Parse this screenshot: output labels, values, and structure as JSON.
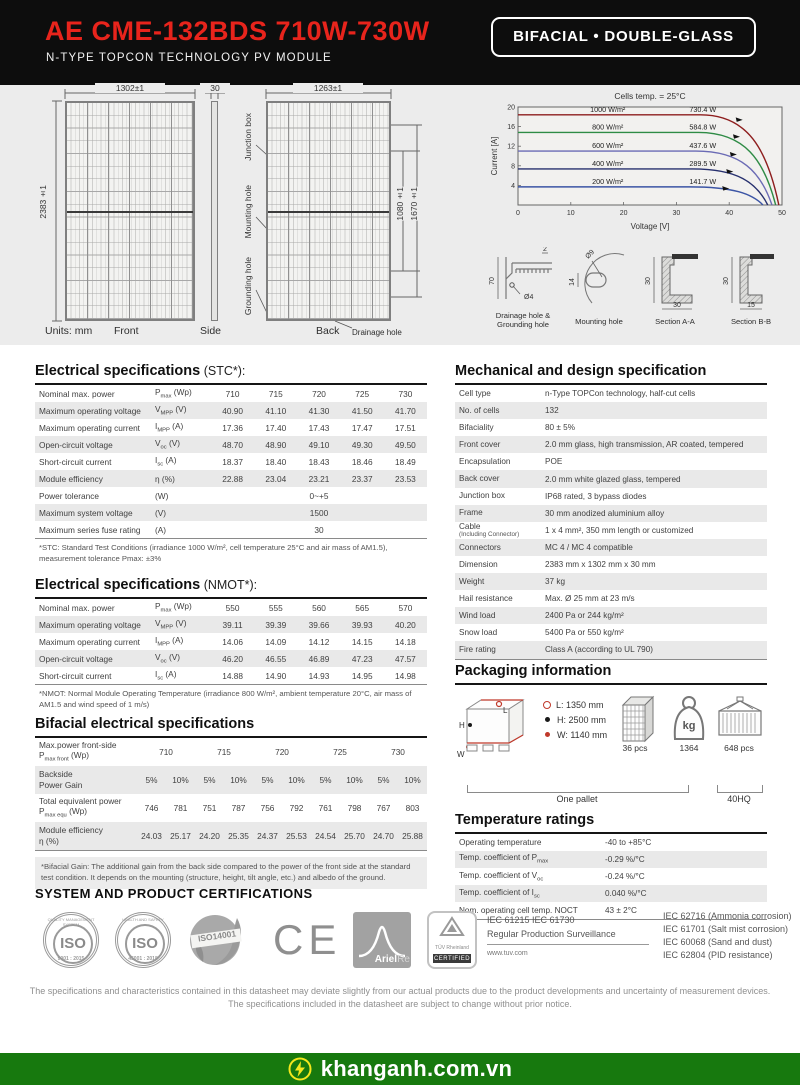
{
  "header": {
    "title": "AE CME-132BDS 710W-730W",
    "subtitle": "N-TYPE TOPCON TECHNOLOGY PV MODULE",
    "badge": "BIFACIAL  •  DOUBLE-GLASS"
  },
  "diagram": {
    "units_label": "Units: mm",
    "front_label": "Front",
    "side_label": "Side",
    "back_label": "Back",
    "front_width_dim": "1302±1",
    "front_height_dim": "2383±1",
    "side_dim": "30",
    "back_width_dim": "1263±1",
    "back_dim_inner": "1080±1",
    "back_dim_outer": "1670±1",
    "junction_box_label": "Junction box",
    "mounting_hole_label": "Mounting hole",
    "grounding_hole_label": "Grounding hole",
    "drainage_hole_label": "Drainage hole",
    "details": [
      {
        "caption": "Drainage hole & Grounding hole",
        "dims": [
          "70",
          "2",
          "Ø4"
        ]
      },
      {
        "caption": "Mounting hole",
        "dims": [
          "Ø9",
          "14"
        ]
      },
      {
        "caption": "Section A-A",
        "dims": [
          "30",
          "30"
        ]
      },
      {
        "caption": "Section B-B",
        "dims": [
          "30",
          "15"
        ]
      }
    ]
  },
  "chart_data": {
    "type": "line",
    "title": "Cells temp. = 25°C",
    "xlabel": "Voltage [V]",
    "ylabel": "Current [A]",
    "xlim": [
      0,
      50
    ],
    "ylim": [
      0,
      20
    ],
    "xticks": [
      0,
      10,
      20,
      30,
      40,
      50
    ],
    "yticks": [
      4,
      8,
      12,
      16,
      20
    ],
    "grid": false,
    "legend_position": "inline-labels",
    "series": [
      {
        "name": "1000 W/m²",
        "power": "730.4 W",
        "isc": 18.4,
        "voc": 49.4,
        "color": "#8e1e1e"
      },
      {
        "name": "800 W/m²",
        "power": "584.8 W",
        "isc": 14.8,
        "voc": 48.8,
        "color": "#2e8b45"
      },
      {
        "name": "600 W/m²",
        "power": "437.6 W",
        "isc": 11.0,
        "voc": 48.1,
        "color": "#6b6bb5"
      },
      {
        "name": "400 W/m²",
        "power": "289.5 W",
        "isc": 7.35,
        "voc": 47.3,
        "color": "#27306e"
      },
      {
        "name": "200 W/m²",
        "power": "141.7 W",
        "isc": 3.7,
        "voc": 46.4,
        "color": "#3c55a5"
      }
    ]
  },
  "stc": {
    "title": "Electrical specifications",
    "title_suffix": " (STC*):",
    "rows": [
      {
        "label": "Nominal max. power",
        "sym": "P",
        "sub": "max",
        "unit": " (Wp)",
        "values": [
          "710",
          "715",
          "720",
          "725",
          "730"
        ]
      },
      {
        "label": "Maximum operating voltage",
        "sym": "V",
        "sub": "MPP",
        "unit": " (V)",
        "values": [
          "40.90",
          "41.10",
          "41.30",
          "41.50",
          "41.70"
        ]
      },
      {
        "label": "Maximum operating current",
        "sym": "I",
        "sub": "MPP",
        "unit": " (A)",
        "values": [
          "17.36",
          "17.40",
          "17.43",
          "17.47",
          "17.51"
        ]
      },
      {
        "label": "Open-circuit voltage",
        "sym": "V",
        "sub": "oc",
        "unit": " (V)",
        "values": [
          "48.70",
          "48.90",
          "49.10",
          "49.30",
          "49.50"
        ]
      },
      {
        "label": "Short-circuit current",
        "sym": "I",
        "sub": "sc",
        "unit": " (A)",
        "values": [
          "18.37",
          "18.40",
          "18.43",
          "18.46",
          "18.49"
        ]
      },
      {
        "label": "Module efficiency",
        "sym": "η",
        "sub": "",
        "unit": " (%)",
        "values": [
          "22.88",
          "23.04",
          "23.21",
          "23.37",
          "23.53"
        ]
      },
      {
        "label": "Power tolerance",
        "sym": "",
        "sub": "",
        "unit": "(W)",
        "values": [
          "0~+5"
        ]
      },
      {
        "label": "Maximum system voltage",
        "sym": "",
        "sub": "",
        "unit": "(V)",
        "values": [
          "1500"
        ]
      },
      {
        "label": "Maximum series fuse rating",
        "sym": "",
        "sub": "",
        "unit": "(A)",
        "values": [
          "30"
        ]
      }
    ],
    "footnote": "*STC: Standard Test Conditions (irradiance 1000 W/m², cell temperature 25°C and air mass of AM1.5), measurement tolerance Pmax: ±3%"
  },
  "nmot": {
    "title": "Electrical specifications",
    "title_suffix": " (NMOT*):",
    "rows": [
      {
        "label": "Nominal max. power",
        "sym": "P",
        "sub": "max",
        "unit": " (Wp)",
        "values": [
          "550",
          "555",
          "560",
          "565",
          "570"
        ]
      },
      {
        "label": "Maximum operating voltage",
        "sym": "V",
        "sub": "MPP",
        "unit": " (V)",
        "values": [
          "39.11",
          "39.39",
          "39.66",
          "39.93",
          "40.20"
        ]
      },
      {
        "label": "Maximum operating current",
        "sym": "I",
        "sub": "MPP",
        "unit": " (A)",
        "values": [
          "14.06",
          "14.09",
          "14.12",
          "14.15",
          "14.18"
        ]
      },
      {
        "label": "Open-circuit voltage",
        "sym": "V",
        "sub": "oc",
        "unit": " (V)",
        "values": [
          "46.20",
          "46.55",
          "46.89",
          "47.23",
          "47.57"
        ]
      },
      {
        "label": "Short-circuit current",
        "sym": "I",
        "sub": "sc",
        "unit": " (A)",
        "values": [
          "14.88",
          "14.90",
          "14.93",
          "14.95",
          "14.98"
        ]
      }
    ],
    "footnote": "*NMOT: Normal Module Operating Temperature (irradiance 800 W/m², ambient temperature 20°C, air mass of AM1.5 and wind speed of 1 m/s)"
  },
  "bifacial": {
    "title": "Bifacial electrical specifications",
    "rows": [
      {
        "line1": "Max.power front-side",
        "sym": "P",
        "sub": "max front",
        "unit": " (Wp)",
        "span": 2,
        "cells": [
          "710",
          "715",
          "720",
          "725",
          "730"
        ]
      },
      {
        "line1": "Backside",
        "line2": "Power Gain",
        "span": 1,
        "cells": [
          "5%",
          "10%",
          "5%",
          "10%",
          "5%",
          "10%",
          "5%",
          "10%",
          "5%",
          "10%"
        ]
      },
      {
        "line1": "Total equivalent power",
        "sym": "P",
        "sub": "max equ",
        "unit": " (Wp)",
        "span": 1,
        "cells": [
          "746",
          "781",
          "751",
          "787",
          "756",
          "792",
          "761",
          "798",
          "767",
          "803"
        ]
      },
      {
        "line1": "Module efficiency",
        "sym": "η",
        "sub": "",
        "unit": " (%)",
        "span": 1,
        "cells": [
          "24.03",
          "25.17",
          "24.20",
          "25.35",
          "24.37",
          "25.53",
          "24.54",
          "25.70",
          "24.70",
          "25.88"
        ]
      }
    ],
    "footnote": "*Bifacial Gain: The additional gain from the back side compared to the power of the front side at the standard test condition. It depends on the mounting (structure, height, tilt angle, etc.) and albedo of the ground."
  },
  "mechanical": {
    "title": "Mechanical and design specification",
    "rows": [
      {
        "label": "Cell type",
        "value": "n-Type TOPCon technology, half-cut cells"
      },
      {
        "label": "No. of cells",
        "value": "132"
      },
      {
        "label": "Bifaciality",
        "value": "80 ± 5%"
      },
      {
        "label": "Front cover",
        "value": "2.0 mm glass, high transmission, AR coated, tempered"
      },
      {
        "label": "Encapsulation",
        "value": "POE"
      },
      {
        "label": "Back cover",
        "value": "2.0 mm white glazed glass, tempered"
      },
      {
        "label": "Junction box",
        "value": "IP68 rated, 3 bypass diodes"
      },
      {
        "label": "Frame",
        "value": "30 mm anodized aluminium alloy"
      },
      {
        "label": "Cable",
        "sublabel": "(Including Connector)",
        "value": "1 x 4 mm², 350 mm length or customized"
      },
      {
        "label": "Connectors",
        "value": "MC 4 / MC 4 compatible"
      },
      {
        "label": "Dimension",
        "value": "2383 mm x 1302 mm x 30 mm"
      },
      {
        "label": "Weight",
        "value": "37 kg"
      },
      {
        "label": "Hail resistance",
        "value": "Max. Ø 25 mm at 23 m/s"
      },
      {
        "label": "Wind load",
        "value": "2400 Pa or 244 kg/m²"
      },
      {
        "label": "Snow load",
        "value": "5400 Pa or 550 kg/m²"
      },
      {
        "label": "Fire rating",
        "value": "Class A (according to UL 790)"
      }
    ]
  },
  "packaging": {
    "title": "Packaging information",
    "icon_labels": {
      "h": "H",
      "l": "L",
      "w": "W"
    },
    "legend": [
      {
        "marker": "open-red",
        "text": "L:  1350 mm"
      },
      {
        "marker": "dot-black",
        "text": "H:  2500 mm"
      },
      {
        "marker": "dot-red",
        "text": "W: 1140 mm"
      }
    ],
    "pallet_pcs": "36 pcs",
    "kg_label": "kg",
    "pallet_weight": "1364",
    "one_pallet_label": "One pallet",
    "container_pcs": "648 pcs",
    "container_bracket": "40HQ"
  },
  "temperature": {
    "title": "Temperature ratings",
    "rows": [
      {
        "prefix": "Operating temperature",
        "sym": "",
        "sub": "",
        "value": "-40 to +85°C"
      },
      {
        "prefix": "Temp. coefficient of ",
        "sym": "P",
        "sub": "max",
        "value": "-0.29 %/°C"
      },
      {
        "prefix": "Temp. coefficient of ",
        "sym": "V",
        "sub": "oc",
        "value": "-0.24 %/°C"
      },
      {
        "prefix": "Temp. coefficient of  ",
        "sym": "I",
        "sub": "sc",
        "value": "0.040 %/°C"
      },
      {
        "prefix": "Nom. operating cell temp. NOCT",
        "sym": "",
        "sub": "",
        "value": "43 ± 2°C"
      }
    ]
  },
  "certifications": {
    "title": "SYSTEM AND PRODUCT CERTIFICATIONS",
    "iso9001": {
      "text": "ISO",
      "ring": "QUALITY MANAGEMENT SYSTEM",
      "year": "9001 : 2015"
    },
    "iso45001": {
      "text": "ISO",
      "ring": "HEALTH AND SAFETY",
      "year": "45001 : 2018"
    },
    "iso14001": {
      "label": "ISO14001",
      "sublabel": "Certified"
    },
    "ce": {
      "label": "CE"
    },
    "arielre": {
      "brand": "Ariel",
      "suffix": "Re"
    },
    "tuv": {
      "brand": "TÜV Rheinland",
      "certified": "CERTIFIED"
    },
    "tuv_block": {
      "line1": "IEC 61215   IEC 61730",
      "line2": "Regular Production Surveillance",
      "url": "www.tuv.com"
    },
    "iec_list": [
      "IEC 62716 (Ammonia corrosion)",
      "IEC 61701 (Salt mist corrosion)",
      "IEC 60068 (Sand and dust)",
      "IEC 62804 (PID resistance)"
    ]
  },
  "disclaimer": {
    "line1": "The specifications and characteristics contained in this datasheet may deviate slightly from our actual products due to the product developments and uncertainty of measurement devices.",
    "line2": "The specifications included in the datasheet are subject to change without prior notice."
  },
  "footer": {
    "site": "khanganh.com.vn"
  }
}
